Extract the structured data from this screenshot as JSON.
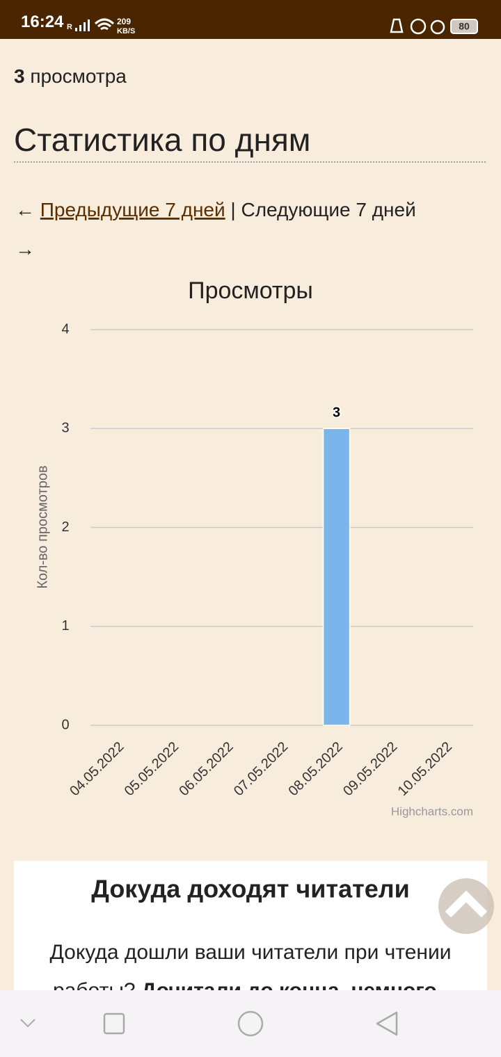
{
  "status_bar": {
    "time": "16:24",
    "signal": "R",
    "net_speed": "209",
    "net_unit": "KB/S",
    "battery": "80"
  },
  "views": {
    "count": "3",
    "label": "просмотра"
  },
  "heading": "Статистика по дням",
  "nav": {
    "prev_arrow": "←",
    "prev": "Предыдущие 7 дней",
    "separator": "|",
    "next": "Следующие 7 дней",
    "next_arrow": "→"
  },
  "chart_data": {
    "type": "bar",
    "title": "Просмотры",
    "y_label": "Кол-во просмотров",
    "categories": [
      "04.05.2022",
      "05.05.2022",
      "06.05.2022",
      "07.05.2022",
      "08.05.2022",
      "09.05.2022",
      "10.05.2022"
    ],
    "values": [
      0,
      0,
      0,
      0,
      3,
      0,
      0
    ],
    "color": "#7cb5ec",
    "ylim": [
      0,
      4
    ],
    "yticks": [
      0,
      1,
      2,
      3,
      4
    ],
    "grid": true,
    "credits": "Highcharts.com"
  },
  "card": {
    "title": "Докуда доходят читатели",
    "text": "Докуда дошли ваши читатели при чтении",
    "text2": "работы?",
    "bold": "Дочитали до конца, немного"
  }
}
